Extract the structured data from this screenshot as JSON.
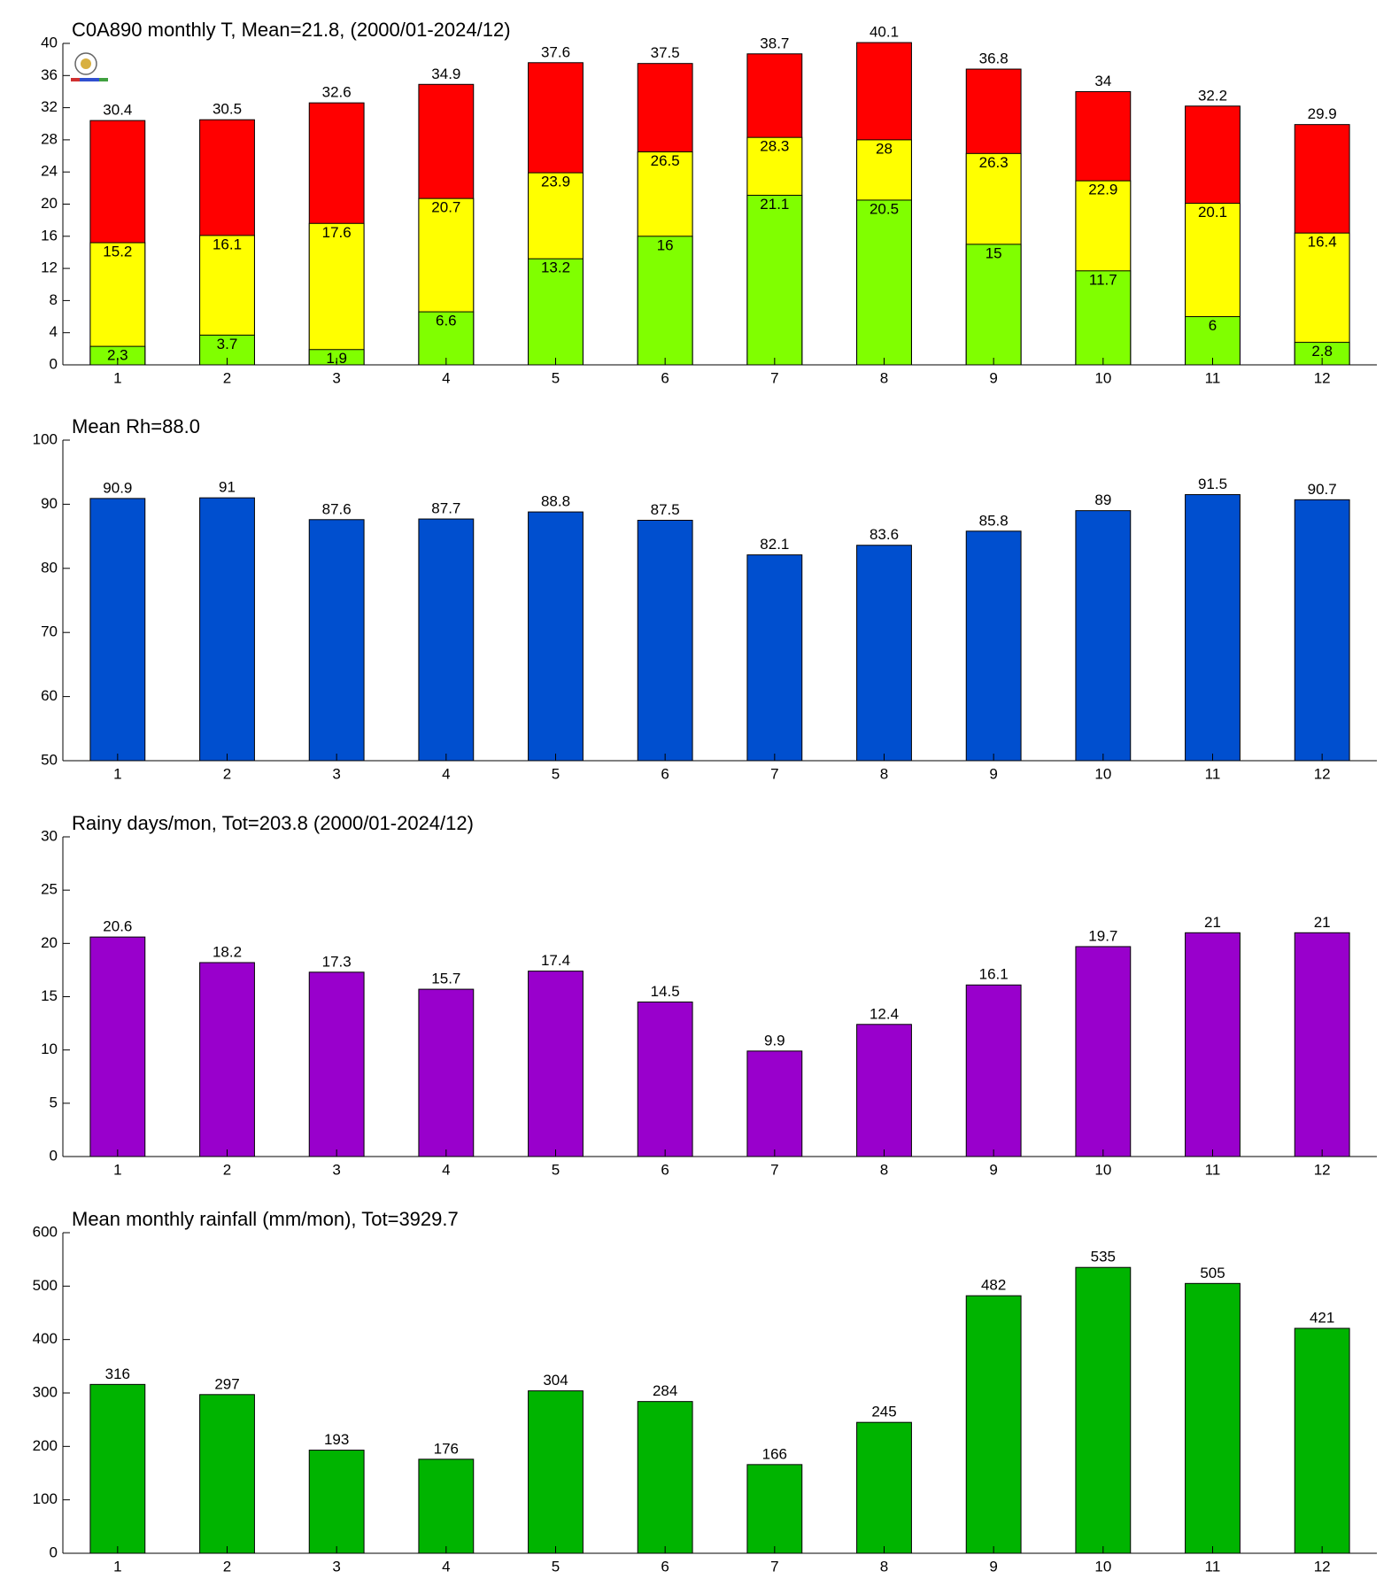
{
  "chart_data": [
    {
      "type": "bar",
      "title": "C0A890 monthly T, Mean=21.8, (2000/01-2024/12)",
      "categories": [
        1,
        2,
        3,
        4,
        5,
        6,
        7,
        8,
        9,
        10,
        11,
        12
      ],
      "series": [
        {
          "color": "#ff0000",
          "values": [
            30.4,
            30.5,
            32.6,
            34.9,
            37.6,
            37.5,
            38.7,
            40.1,
            36.8,
            34,
            32.2,
            29.9
          ]
        },
        {
          "color": "#ffff00",
          "values": [
            15.2,
            16.1,
            17.6,
            20.7,
            23.9,
            26.5,
            28.3,
            28,
            26.3,
            22.9,
            20.1,
            16.4
          ]
        },
        {
          "color": "#80ff00",
          "values": [
            2.3,
            3.7,
            1.9,
            6.6,
            13.2,
            16,
            21.1,
            20.5,
            15,
            11.7,
            6,
            2.8
          ]
        }
      ],
      "ylim": [
        0,
        40
      ],
      "yticks": [
        0,
        4,
        8,
        12,
        16,
        20,
        24,
        28,
        32,
        36,
        40
      ]
    },
    {
      "type": "bar",
      "title": "Mean Rh=88.0",
      "categories": [
        1,
        2,
        3,
        4,
        5,
        6,
        7,
        8,
        9,
        10,
        11,
        12
      ],
      "series": [
        {
          "color": "#004fcf",
          "values": [
            90.9,
            91,
            87.6,
            87.7,
            88.8,
            87.5,
            82.1,
            83.6,
            85.8,
            89,
            91.5,
            90.7
          ]
        }
      ],
      "ylim": [
        50,
        100
      ],
      "yticks": [
        50,
        60,
        70,
        80,
        90,
        100
      ]
    },
    {
      "type": "bar",
      "title": "Rainy days/mon, Tot=203.8 (2000/01-2024/12)",
      "categories": [
        1,
        2,
        3,
        4,
        5,
        6,
        7,
        8,
        9,
        10,
        11,
        12
      ],
      "series": [
        {
          "color": "#9900cc",
          "values": [
            20.6,
            18.2,
            17.3,
            15.7,
            17.4,
            14.5,
            9.9,
            12.4,
            16.1,
            19.7,
            21,
            21
          ]
        }
      ],
      "ylim": [
        0,
        30
      ],
      "yticks": [
        0,
        5,
        10,
        15,
        20,
        25,
        30
      ]
    },
    {
      "type": "bar",
      "title": "Mean monthly rainfall (mm/mon), Tot=3929.7",
      "categories": [
        1,
        2,
        3,
        4,
        5,
        6,
        7,
        8,
        9,
        10,
        11,
        12
      ],
      "series": [
        {
          "color": "#00b400",
          "values": [
            316,
            297,
            193,
            176,
            304,
            284,
            166,
            245,
            482,
            535,
            505,
            421
          ]
        }
      ],
      "ylim": [
        0,
        600
      ],
      "yticks": [
        0,
        100,
        200,
        300,
        400,
        500,
        600
      ]
    }
  ]
}
